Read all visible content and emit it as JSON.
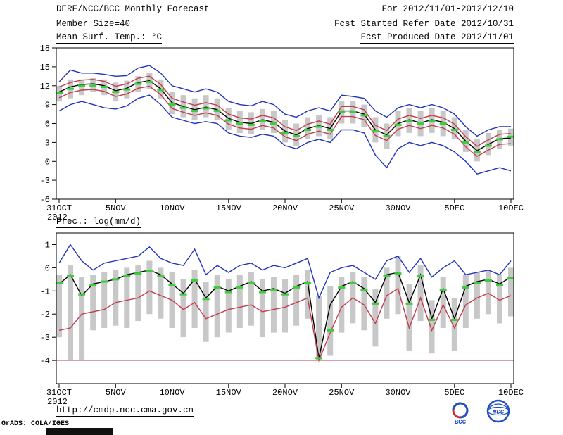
{
  "header": {
    "title": "DERF/NCC/BCC Monthly Forecast",
    "member_size": "Member Size=40",
    "for_period": "For 2012/11/01-2012/12/10",
    "refer_date": "Fcst Started Refer Date 2012/10/31",
    "produced_date": "Fcst Produced Date 2012/11/01"
  },
  "footer": {
    "url": "http://cmdp.ncc.cma.gov.cn",
    "credit": "GrADS: COLA/IGES",
    "logo_bcc": "BCC",
    "logo_ncc": "NCC"
  },
  "chart_data": [
    {
      "type": "line",
      "title": "Mean Surf. Temp.: °C",
      "x_year": "2012",
      "n_days": 41,
      "ylim": [
        -6,
        18
      ],
      "yticks": [
        18,
        15,
        12,
        9,
        6,
        3,
        0,
        -3,
        -6
      ],
      "xticks": [
        {
          "day": 0,
          "label": "31OCT"
        },
        {
          "day": 5,
          "label": "5NOV"
        },
        {
          "day": 10,
          "label": "10NOV"
        },
        {
          "day": 15,
          "label": "15NOV"
        },
        {
          "day": 20,
          "label": "20NOV"
        },
        {
          "day": 25,
          "label": "25NOV"
        },
        {
          "day": 30,
          "label": "30NOV"
        },
        {
          "day": 35,
          "label": "5DEC"
        },
        {
          "day": 40,
          "label": "10DEC"
        }
      ],
      "bar_color": "#c8c8c8",
      "median_color": "#3ecc3e",
      "bar_low": [
        9.5,
        10.0,
        10.5,
        11.0,
        10.5,
        9.5,
        10.0,
        11.0,
        11.5,
        10.0,
        7.5,
        7.0,
        6.5,
        7.0,
        6.5,
        5.0,
        4.5,
        4.3,
        5.0,
        4.5,
        3.0,
        2.5,
        3.5,
        4.0,
        3.5,
        6.0,
        6.0,
        5.5,
        3.0,
        2.0,
        4.0,
        4.5,
        4.0,
        4.5,
        4.0,
        3.5,
        1.5,
        0.0,
        1.0,
        2.0,
        2.5
      ],
      "bar_high": [
        12.0,
        13.0,
        13.0,
        13.2,
        13.0,
        12.5,
        12.8,
        13.5,
        14.0,
        13.0,
        11.0,
        10.5,
        10.0,
        10.5,
        10.0,
        8.5,
        8.0,
        7.8,
        8.3,
        8.0,
        6.5,
        6.0,
        7.0,
        7.3,
        7.0,
        9.5,
        9.5,
        9.0,
        7.0,
        6.0,
        8.0,
        8.5,
        8.0,
        8.5,
        8.0,
        7.0,
        5.0,
        3.5,
        4.5,
        5.0,
        5.2
      ],
      "median": [
        10.8,
        11.5,
        12.0,
        12.0,
        11.8,
        11.0,
        11.4,
        12.3,
        12.6,
        11.3,
        9.0,
        8.5,
        8.0,
        8.4,
        8.0,
        6.5,
        6.0,
        5.8,
        6.4,
        6.0,
        4.5,
        4.0,
        5.0,
        5.5,
        5.0,
        7.8,
        7.8,
        7.3,
        4.8,
        4.0,
        5.8,
        6.4,
        6.0,
        6.4,
        6.0,
        5.0,
        3.0,
        1.5,
        2.5,
        3.5,
        3.9
      ],
      "series": [
        {
          "name": "ensemble-max",
          "color": "#2233bb",
          "values": [
            12.6,
            14.5,
            14.0,
            14.0,
            13.8,
            13.5,
            13.6,
            14.8,
            15.2,
            14.0,
            12.0,
            11.5,
            11.0,
            11.5,
            11.0,
            9.5,
            9.0,
            8.8,
            9.5,
            9.0,
            7.5,
            7.0,
            8.0,
            8.5,
            8.0,
            10.5,
            10.3,
            10.0,
            8.0,
            7.0,
            8.5,
            9.0,
            8.5,
            9.0,
            8.5,
            7.5,
            5.5,
            4.0,
            5.0,
            5.5,
            5.5
          ]
        },
        {
          "name": "upper-quartile",
          "color": "#c43b4e",
          "values": [
            11.8,
            12.5,
            12.9,
            13.0,
            12.7,
            11.9,
            12.3,
            13.2,
            13.5,
            12.2,
            10.0,
            9.4,
            8.9,
            9.3,
            8.9,
            7.5,
            6.9,
            6.7,
            7.3,
            6.9,
            5.5,
            4.9,
            5.9,
            6.4,
            5.9,
            8.7,
            8.7,
            8.2,
            5.7,
            4.9,
            6.7,
            7.3,
            6.8,
            7.3,
            6.9,
            5.9,
            3.9,
            2.4,
            3.4,
            4.3,
            4.4
          ]
        },
        {
          "name": "ensemble-mean",
          "color": "#000000",
          "values": [
            11.0,
            11.8,
            12.2,
            12.3,
            12.0,
            11.2,
            11.6,
            12.5,
            12.8,
            11.5,
            9.3,
            8.7,
            8.2,
            8.6,
            8.2,
            6.8,
            6.2,
            6.0,
            6.6,
            6.2,
            4.8,
            4.2,
            5.2,
            5.7,
            5.2,
            8.0,
            8.0,
            7.5,
            5.0,
            4.2,
            6.0,
            6.6,
            6.1,
            6.6,
            6.2,
            5.2,
            3.2,
            1.7,
            2.7,
            3.6,
            3.7
          ]
        },
        {
          "name": "lower-quartile",
          "color": "#c43b4e",
          "values": [
            10.1,
            10.9,
            11.3,
            11.4,
            11.1,
            10.3,
            10.7,
            11.6,
            11.9,
            10.6,
            8.4,
            7.8,
            7.3,
            7.7,
            7.3,
            5.9,
            5.3,
            5.1,
            5.7,
            5.3,
            3.9,
            3.3,
            4.3,
            4.8,
            4.3,
            7.1,
            7.1,
            6.6,
            4.1,
            3.3,
            5.1,
            5.7,
            5.2,
            5.7,
            5.3,
            4.3,
            2.3,
            0.8,
            1.8,
            2.7,
            2.8
          ]
        },
        {
          "name": "ensemble-min",
          "color": "#2233bb",
          "values": [
            8.0,
            9.0,
            9.5,
            9.0,
            8.5,
            8.3,
            8.8,
            10.0,
            10.5,
            9.0,
            7.0,
            6.5,
            6.0,
            6.3,
            6.0,
            4.5,
            4.0,
            3.8,
            4.3,
            4.0,
            2.5,
            2.0,
            3.0,
            3.5,
            3.0,
            5.0,
            5.0,
            4.5,
            1.0,
            -1.0,
            2.0,
            3.0,
            2.5,
            3.0,
            2.5,
            1.5,
            0.0,
            -2.0,
            -1.5,
            -1.0,
            -1.5
          ]
        }
      ]
    },
    {
      "type": "line",
      "title": "Prec.: log(mm/d)",
      "x_year": "2012",
      "n_days": 41,
      "ylim": [
        -5,
        1.5
      ],
      "yticks": [
        1,
        0,
        -1,
        -2,
        -3,
        -4
      ],
      "xticks": [
        {
          "day": 0,
          "label": "31OCT"
        },
        {
          "day": 5,
          "label": "5NOV"
        },
        {
          "day": 10,
          "label": "10NOV"
        },
        {
          "day": 15,
          "label": "15NOV"
        },
        {
          "day": 20,
          "label": "20NOV"
        },
        {
          "day": 25,
          "label": "25NOV"
        },
        {
          "day": 30,
          "label": "30NOV"
        },
        {
          "day": 35,
          "label": "5DEC"
        },
        {
          "day": 40,
          "label": "10DEC"
        }
      ],
      "bar_color": "#c8c8c8",
      "median_color": "#3ecc3e",
      "baseline": {
        "value": -4,
        "color": "#cc8090"
      },
      "bar_low": [
        -3.0,
        -4.0,
        -4.0,
        -2.7,
        -2.6,
        -2.5,
        -2.6,
        -2.3,
        -2.0,
        -2.2,
        -2.6,
        -3.0,
        -2.6,
        -3.2,
        -3.0,
        -2.8,
        -2.6,
        -2.5,
        -3.0,
        -2.8,
        -2.8,
        -2.5,
        -2.2,
        -4.0,
        -3.8,
        -2.8,
        -2.4,
        -2.7,
        -3.4,
        -2.2,
        -2.0,
        -3.6,
        -2.3,
        -3.7,
        -2.6,
        -3.6,
        -2.6,
        -2.2,
        -2.0,
        -2.4,
        -2.1
      ],
      "bar_high": [
        -0.3,
        0.1,
        -0.4,
        -0.3,
        -0.2,
        -0.1,
        0.0,
        0.1,
        0.3,
        0.0,
        -0.2,
        -0.5,
        -0.1,
        -0.6,
        -0.3,
        -0.5,
        -0.3,
        -0.2,
        -0.5,
        -0.4,
        -0.5,
        -0.3,
        -0.1,
        -1.2,
        -0.8,
        -0.4,
        -0.2,
        -0.4,
        -0.9,
        0.0,
        0.5,
        -0.7,
        0.1,
        -1.4,
        -0.4,
        -1.3,
        -0.3,
        -0.2,
        -0.1,
        -0.3,
        0.0
      ],
      "median": [
        -0.65,
        -0.35,
        -1.15,
        -0.75,
        -0.6,
        -0.5,
        -0.35,
        -0.25,
        -0.15,
        -0.35,
        -0.75,
        -1.15,
        -0.55,
        -1.35,
        -0.85,
        -1.05,
        -0.85,
        -0.65,
        -1.05,
        -0.95,
        -1.15,
        -0.85,
        -0.65,
        -3.9,
        -2.7,
        -0.85,
        -0.65,
        -0.95,
        -1.55,
        -0.35,
        -0.25,
        -1.55,
        -0.35,
        -2.25,
        -0.95,
        -2.25,
        -0.85,
        -0.65,
        -0.55,
        -0.75,
        -0.45
      ],
      "series": [
        {
          "name": "ensemble-max",
          "color": "#2233bb",
          "values": [
            0.2,
            1.0,
            0.3,
            -0.1,
            0.2,
            0.3,
            0.4,
            0.5,
            0.9,
            0.4,
            0.2,
            0.1,
            0.8,
            -0.3,
            0.1,
            -0.2,
            0.1,
            0.2,
            -0.1,
            0.1,
            0.0,
            0.2,
            0.4,
            -1.3,
            -0.2,
            0.0,
            0.1,
            -0.2,
            -0.5,
            0.3,
            0.5,
            -0.2,
            0.4,
            -0.4,
            0.0,
            0.3,
            -0.3,
            -0.2,
            -0.1,
            -0.3,
            0.3
          ]
        },
        {
          "name": "ensemble-mean",
          "color": "#000000",
          "values": [
            -0.7,
            -0.3,
            -1.2,
            -0.7,
            -0.6,
            -0.5,
            -0.3,
            -0.2,
            -0.1,
            -0.3,
            -0.7,
            -1.1,
            -0.5,
            -1.3,
            -0.8,
            -1.0,
            -0.8,
            -0.6,
            -1.0,
            -0.9,
            -1.1,
            -0.8,
            -0.6,
            -3.9,
            -1.6,
            -0.8,
            -0.6,
            -0.9,
            -1.5,
            -0.3,
            -0.2,
            -1.5,
            -0.3,
            -2.2,
            -0.9,
            -2.2,
            -0.8,
            -0.6,
            -0.5,
            -0.7,
            -0.4
          ]
        },
        {
          "name": "lower-quartile",
          "color": "#c43b4e",
          "values": [
            -2.7,
            -2.6,
            -2.0,
            -1.9,
            -1.8,
            -1.5,
            -1.4,
            -1.3,
            -1.0,
            -1.2,
            -1.4,
            -1.8,
            -1.5,
            -2.2,
            -2.0,
            -1.8,
            -1.7,
            -1.6,
            -1.9,
            -1.8,
            -1.7,
            -1.5,
            -1.3,
            -4.0,
            -2.8,
            -1.7,
            -1.3,
            -1.6,
            -2.4,
            -1.2,
            -0.9,
            -2.6,
            -1.3,
            -2.7,
            -1.6,
            -2.6,
            -1.6,
            -1.3,
            -1.1,
            -1.4,
            -1.2
          ]
        }
      ]
    }
  ]
}
